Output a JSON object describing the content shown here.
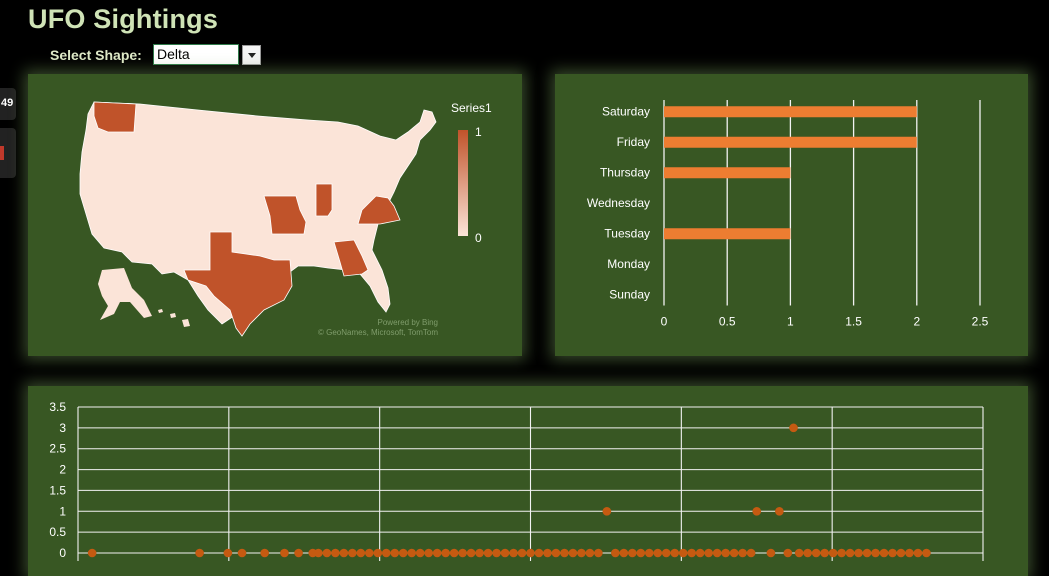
{
  "header": {
    "title": "UFO Sightings",
    "select_label": "Select Shape:",
    "select_value": "Delta"
  },
  "side": {
    "tab_text": "49"
  },
  "chart_data": [
    {
      "type": "map",
      "legend_title": "Series1",
      "legend_max": "1",
      "legend_min": "0",
      "highlighted_states": [
        "Washington",
        "Texas",
        "Missouri",
        "Indiana",
        "Virginia",
        "Georgia"
      ],
      "colors": {
        "high": "#c0532a",
        "low": "#fbe4d8"
      },
      "attribution_line1": "Powered by Bing",
      "attribution_line2": "© GeoNames, Microsoft, TomTom"
    },
    {
      "type": "bar",
      "orientation": "horizontal",
      "categories": [
        "Saturday",
        "Friday",
        "Thursday",
        "Wednesday",
        "Tuesday",
        "Monday",
        "Sunday"
      ],
      "values": [
        2,
        2,
        1,
        0,
        1,
        0,
        0
      ],
      "xlim": [
        0,
        2.5
      ],
      "x_ticks": [
        "0",
        "0.5",
        "1",
        "1.5",
        "2",
        "2.5"
      ],
      "grid": true,
      "bar_color": "#ed7d31"
    },
    {
      "type": "scatter",
      "ylim": [
        0,
        3.5
      ],
      "y_ticks": [
        "0",
        "0.5",
        "1",
        "1.5",
        "2",
        "2.5",
        "3",
        "3.5"
      ],
      "x": [
        5,
        43,
        53,
        58,
        66,
        73,
        78,
        83,
        85,
        88,
        91,
        94,
        97,
        100,
        103,
        106,
        109,
        112,
        115,
        118,
        121,
        124,
        127,
        130,
        133,
        136,
        139,
        142,
        145,
        148,
        151,
        154,
        157,
        160,
        163,
        166,
        169,
        172,
        175,
        178,
        181,
        184,
        187,
        190,
        193,
        196,
        199,
        202,
        205,
        208,
        211,
        214,
        217,
        220,
        223,
        226,
        229,
        232,
        235,
        238,
        240,
        245,
        248,
        251,
        253,
        255,
        258,
        261,
        264,
        267,
        270,
        273,
        276,
        279,
        282,
        285,
        288,
        291,
        294,
        297,
        300
      ],
      "y": [
        0,
        0,
        0,
        0,
        0,
        0,
        0,
        0,
        0,
        0,
        0,
        0,
        0,
        0,
        0,
        0,
        0,
        0,
        0,
        0,
        0,
        0,
        0,
        0,
        0,
        0,
        0,
        0,
        0,
        0,
        0,
        0,
        0,
        0,
        0,
        0,
        0,
        0,
        0,
        0,
        0,
        0,
        1,
        0,
        0,
        0,
        0,
        0,
        0,
        0,
        0,
        0,
        0,
        0,
        0,
        0,
        0,
        0,
        0,
        0,
        1,
        0,
        1,
        0,
        3,
        0,
        0,
        0,
        0,
        0,
        0,
        0,
        0,
        0,
        0,
        0,
        0,
        0,
        0,
        0,
        0
      ],
      "grid": true,
      "point_color": "#c55a11"
    }
  ]
}
